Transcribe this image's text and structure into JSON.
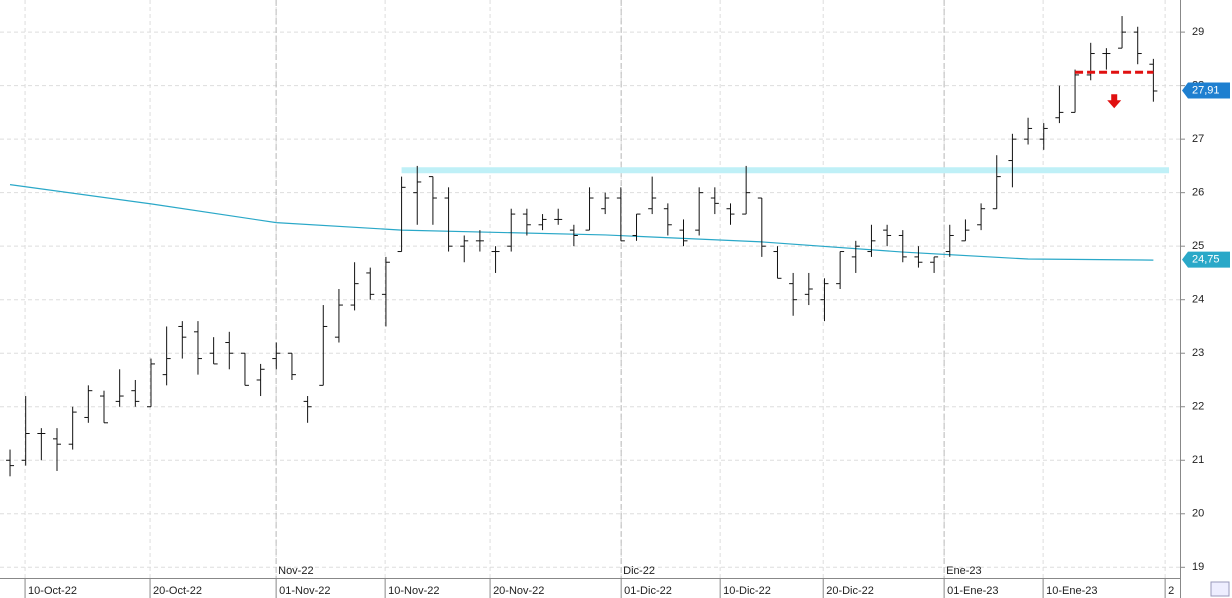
{
  "chart_data": {
    "type": "ohlc",
    "color": "#111111",
    "open": [
      21.0,
      21.0,
      21.5,
      21.4,
      21.3,
      21.8,
      22.2,
      22.1,
      22.3,
      22.0,
      22.6,
      23.5,
      23.4,
      23.0,
      23.2,
      23.0,
      22.5,
      22.9,
      23.0,
      22.1,
      22.4,
      23.3,
      23.9,
      24.5,
      24.1,
      24.9,
      26.0,
      26.3,
      25.9,
      25.0,
      25.1,
      24.9,
      25.0,
      25.6,
      25.4,
      25.5,
      25.3,
      25.3,
      25.7,
      25.9,
      25.2,
      25.7,
      25.7,
      25.3,
      25.3,
      25.9,
      25.7,
      25.6,
      25.9,
      24.9,
      24.3,
      24.1,
      24.0,
      24.3,
      24.8,
      24.9,
      25.3,
      25.2,
      24.8,
      24.7,
      24.9,
      25.1,
      25.4,
      25.7,
      26.6,
      27.0,
      27.0,
      27.4,
      27.5,
      28.2,
      28.6,
      28.7,
      29.0,
      28.4
    ],
    "high": [
      21.2,
      22.2,
      21.6,
      21.6,
      22.0,
      22.4,
      22.3,
      22.7,
      22.5,
      22.9,
      23.5,
      23.6,
      23.6,
      23.3,
      23.4,
      23.0,
      22.8,
      23.2,
      23.0,
      22.2,
      23.9,
      24.2,
      24.7,
      24.6,
      24.8,
      26.3,
      26.5,
      26.3,
      26.1,
      25.2,
      25.3,
      25.0,
      25.7,
      25.7,
      25.6,
      25.7,
      25.4,
      26.1,
      26.0,
      26.1,
      25.6,
      26.3,
      25.8,
      25.5,
      26.1,
      26.1,
      25.8,
      26.5,
      25.9,
      25.0,
      24.5,
      24.5,
      24.4,
      24.9,
      25.1,
      25.4,
      25.4,
      25.3,
      25.0,
      24.8,
      25.4,
      25.5,
      25.8,
      26.7,
      27.1,
      27.4,
      27.3,
      28.0,
      28.3,
      28.8,
      28.7,
      29.3,
      29.1,
      28.5
    ],
    "low": [
      20.7,
      20.9,
      21.0,
      20.8,
      21.2,
      21.7,
      21.7,
      22.0,
      22.0,
      22.0,
      22.4,
      22.9,
      22.6,
      22.8,
      22.7,
      22.4,
      22.2,
      22.7,
      22.5,
      21.7,
      22.4,
      23.2,
      23.8,
      24.0,
      23.5,
      24.9,
      25.4,
      25.4,
      24.9,
      24.7,
      24.9,
      24.5,
      24.9,
      25.2,
      25.3,
      25.4,
      25.0,
      25.3,
      25.6,
      25.1,
      25.1,
      25.6,
      25.2,
      25.0,
      25.2,
      25.6,
      25.4,
      25.6,
      24.8,
      24.4,
      23.7,
      23.9,
      23.6,
      24.2,
      24.5,
      24.8,
      25.0,
      24.7,
      24.6,
      24.5,
      24.8,
      25.1,
      25.3,
      25.7,
      26.1,
      26.9,
      26.8,
      27.3,
      27.5,
      28.1,
      28.3,
      28.7,
      28.4,
      27.7
    ],
    "close": [
      20.9,
      21.5,
      21.5,
      21.3,
      21.9,
      22.3,
      21.7,
      22.2,
      22.1,
      22.8,
      22.9,
      23.3,
      22.9,
      22.8,
      23.0,
      22.4,
      22.7,
      23.0,
      22.6,
      22.0,
      23.5,
      23.9,
      24.3,
      24.1,
      24.7,
      26.1,
      26.2,
      25.9,
      25.0,
      25.1,
      25.1,
      24.9,
      25.6,
      25.4,
      25.5,
      25.5,
      25.2,
      25.9,
      25.9,
      25.1,
      25.6,
      25.9,
      25.4,
      25.1,
      26.0,
      25.8,
      25.6,
      26.0,
      25.0,
      24.4,
      24.0,
      24.2,
      24.3,
      24.9,
      25.0,
      25.1,
      25.2,
      24.8,
      24.7,
      24.8,
      25.2,
      25.3,
      25.7,
      26.3,
      27.0,
      27.2,
      27.2,
      27.5,
      28.2,
      28.6,
      28.6,
      29.0,
      28.6,
      27.9
    ],
    "moving_average": {
      "color": "#2aa8c8",
      "x": [
        0,
        9,
        17,
        25,
        38,
        48,
        57,
        65,
        73
      ],
      "values": [
        26.15,
        25.79,
        25.44,
        25.3,
        25.21,
        25.08,
        24.89,
        24.76,
        24.74
      ]
    },
    "resistance": {
      "value": 26.42,
      "color": "#bff0f7",
      "x": [
        25,
        74
      ]
    },
    "stop_line": {
      "value": 28.25,
      "color": "#e01010",
      "x": [
        68,
        73
      ]
    },
    "last_price": {
      "value": 27.91,
      "label": "27,91"
    },
    "ma_price": {
      "value": 24.75,
      "label": "24,75"
    },
    "ylim": [
      18.8,
      29.6
    ],
    "yticks": [
      19,
      20,
      21,
      22,
      23,
      24,
      25,
      26,
      27,
      28,
      29
    ],
    "xlim": [
      -0.64,
      74.7
    ],
    "xticks": [
      {
        "value": 0.96,
        "label": "10-Oct-22"
      },
      {
        "value": 8.94,
        "label": "20-Oct-22"
      },
      {
        "value": 16.99,
        "label": "01-Nov-22"
      },
      {
        "value": 23.95,
        "label": "10-Nov-22"
      },
      {
        "value": 30.65,
        "label": "20-Nov-22"
      },
      {
        "value": 39.02,
        "label": "01-Dic-22"
      },
      {
        "value": 45.34,
        "label": "10-Dic-22"
      },
      {
        "value": 51.92,
        "label": "20-Dic-22"
      },
      {
        "value": 59.64,
        "label": "01-Ene-23"
      },
      {
        "value": 65.96,
        "label": "10-Ene-23"
      },
      {
        "value": 73.75,
        "label": "2"
      }
    ],
    "month_ticks": [
      {
        "value": 16.99,
        "label": "Nov-22"
      },
      {
        "value": 39.02,
        "label": "Dic-22"
      },
      {
        "value": 59.64,
        "label": "Ene-23"
      }
    ],
    "grid": true
  }
}
